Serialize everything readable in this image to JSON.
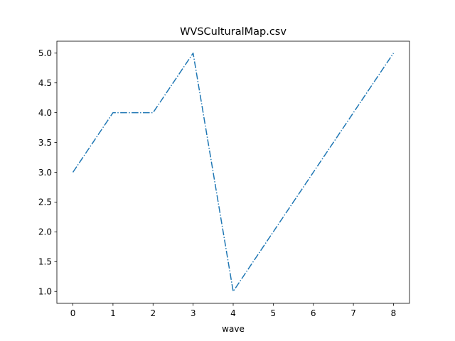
{
  "chart_data": {
    "type": "line",
    "title": "WVSCulturalMap.csv",
    "xlabel": "wave",
    "ylabel": "",
    "x": [
      0,
      1,
      2,
      3,
      4,
      5,
      6,
      7,
      8
    ],
    "series": [
      {
        "values": [
          3.0,
          4.0,
          4.0,
          5.0,
          1.0,
          2.0,
          3.0,
          4.0,
          5.0
        ],
        "color": "#1f77b4",
        "linestyle": "dash-dot"
      }
    ],
    "xlim": [
      -0.4,
      8.4
    ],
    "ylim": [
      0.8,
      5.2
    ],
    "xticks": [
      "0",
      "1",
      "2",
      "3",
      "4",
      "5",
      "6",
      "7",
      "8"
    ],
    "yticks": [
      "1.0",
      "1.5",
      "2.0",
      "2.5",
      "3.0",
      "3.5",
      "4.0",
      "4.5",
      "5.0"
    ],
    "grid": false,
    "legend": "none"
  }
}
